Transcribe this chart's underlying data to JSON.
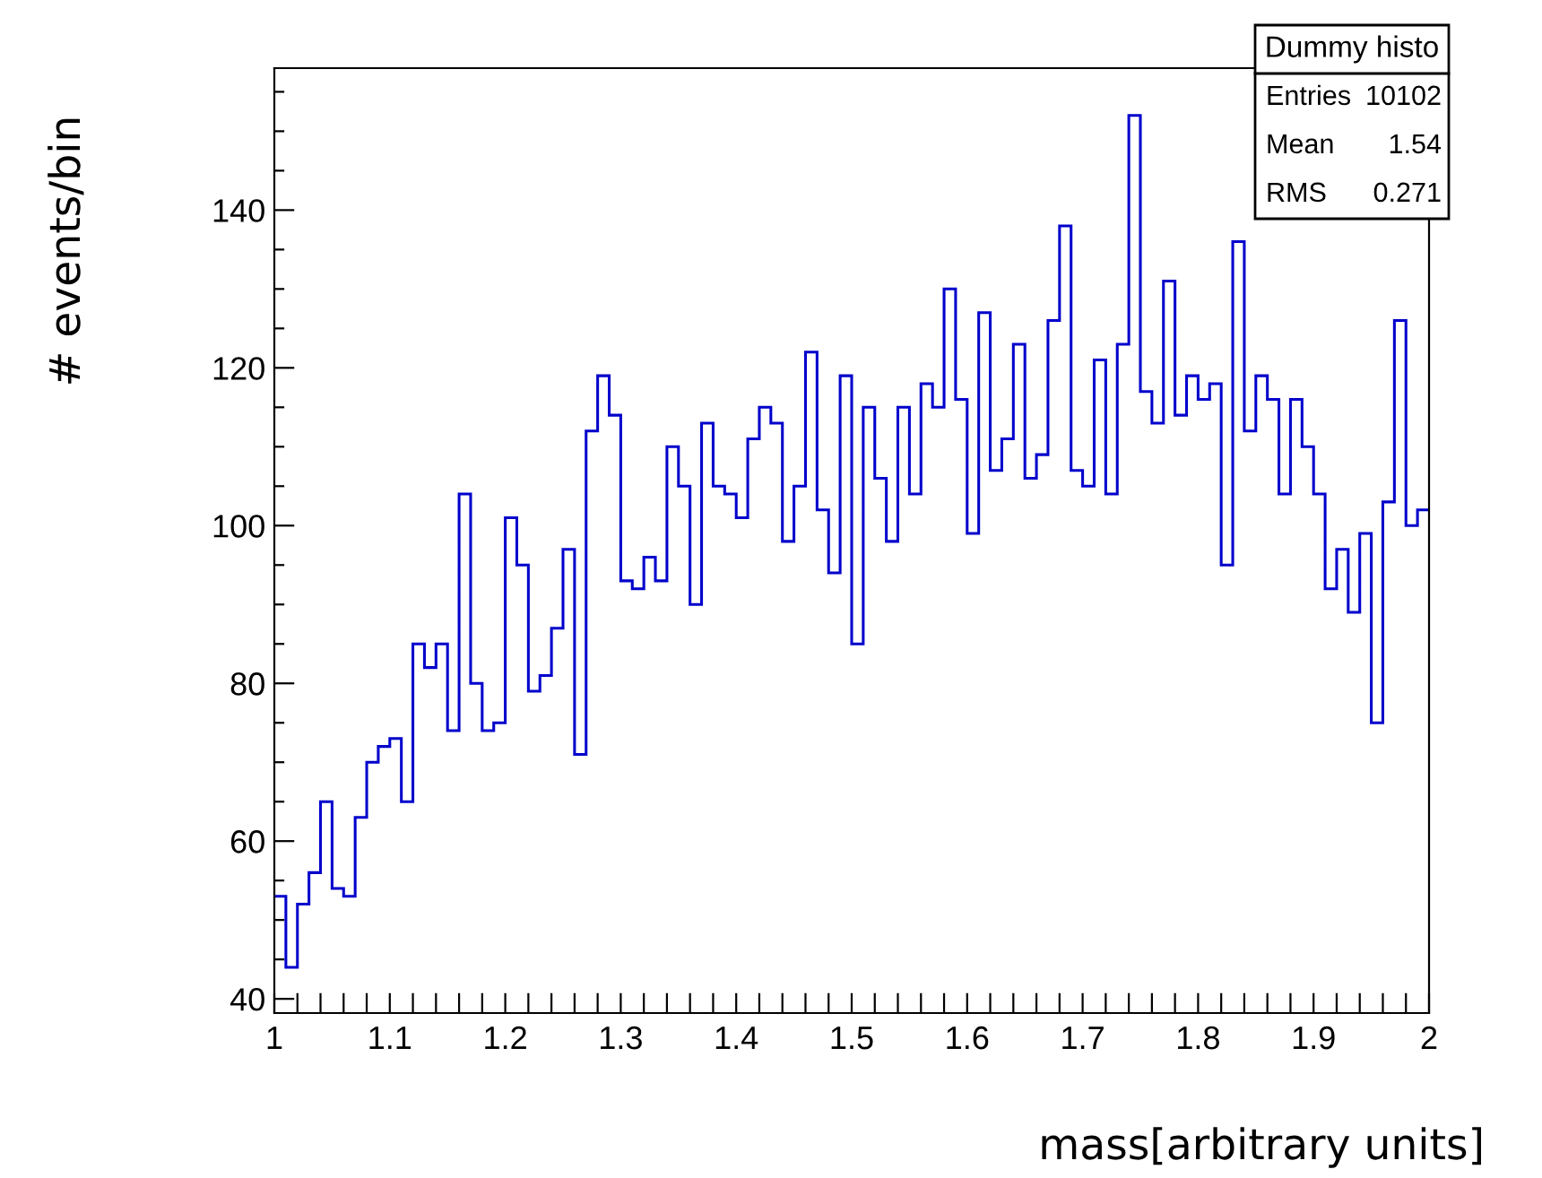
{
  "chart_data": {
    "type": "histogram",
    "xlabel": "mass[arbitrary units]",
    "ylabel": "# events/bin",
    "color": "#0000cc",
    "bins": [
      1.0,
      1.01,
      1.02,
      1.03,
      1.04,
      1.05,
      1.06,
      1.07,
      1.08,
      1.09,
      1.1,
      1.11,
      1.12,
      1.13,
      1.14,
      1.15,
      1.16,
      1.17,
      1.18,
      1.19,
      1.2,
      1.21,
      1.22,
      1.23,
      1.24,
      1.25,
      1.26,
      1.27,
      1.28,
      1.29,
      1.3,
      1.31,
      1.32,
      1.33,
      1.34,
      1.35,
      1.36,
      1.37,
      1.38,
      1.39,
      1.4,
      1.41,
      1.42,
      1.43,
      1.44,
      1.45,
      1.46,
      1.47,
      1.48,
      1.49,
      1.5,
      1.51,
      1.52,
      1.53,
      1.54,
      1.55,
      1.56,
      1.57,
      1.58,
      1.59,
      1.6,
      1.61,
      1.62,
      1.63,
      1.64,
      1.65,
      1.66,
      1.67,
      1.68,
      1.69,
      1.7,
      1.71,
      1.72,
      1.73,
      1.74,
      1.75,
      1.76,
      1.77,
      1.78,
      1.79,
      1.8,
      1.81,
      1.82,
      1.83,
      1.84,
      1.85,
      1.86,
      1.87,
      1.88,
      1.89,
      1.9,
      1.91,
      1.92,
      1.93,
      1.94,
      1.95,
      1.96,
      1.97,
      1.98,
      1.99,
      2.0
    ],
    "values": [
      53,
      44,
      52,
      56,
      65,
      54,
      53,
      63,
      70,
      72,
      73,
      65,
      85,
      82,
      85,
      74,
      104,
      80,
      74,
      75,
      101,
      95,
      79,
      81,
      87,
      97,
      71,
      112,
      119,
      114,
      93,
      92,
      96,
      93,
      110,
      105,
      90,
      113,
      105,
      104,
      101,
      111,
      115,
      113,
      98,
      105,
      122,
      102,
      94,
      119,
      85,
      115,
      106,
      98,
      115,
      104,
      118,
      115,
      130,
      116,
      99,
      127,
      107,
      111,
      123,
      106,
      109,
      126,
      138,
      107,
      105,
      121,
      104,
      123,
      152,
      117,
      113,
      131,
      114,
      119,
      116,
      118,
      95,
      136,
      112,
      119,
      116,
      104,
      116,
      110,
      104,
      92,
      97,
      89,
      99,
      75,
      103,
      126,
      100,
      102
    ],
    "xlim": [
      1,
      2
    ],
    "ylim": [
      38.2,
      158
    ],
    "xticks": [
      1,
      {
        "value": 1.02,
        "label": null
      },
      {
        "value": 1.04,
        "label": null
      },
      {
        "value": 1.06,
        "label": null
      },
      {
        "value": 1.08,
        "label": null
      },
      1.1,
      {
        "value": 1.12,
        "label": null
      },
      {
        "value": 1.14,
        "label": null
      },
      {
        "value": 1.16,
        "label": null
      },
      {
        "value": 1.18,
        "label": null
      },
      1.2,
      {
        "value": 1.22,
        "label": null
      },
      {
        "value": 1.24,
        "label": null
      },
      {
        "value": 1.26,
        "label": null
      },
      {
        "value": 1.28,
        "label": null
      },
      1.3,
      {
        "value": 1.32,
        "label": null
      },
      {
        "value": 1.34,
        "label": null
      },
      {
        "value": 1.36,
        "label": null
      },
      {
        "value": 1.38,
        "label": null
      },
      1.4,
      {
        "value": 1.42,
        "label": null
      },
      {
        "value": 1.44,
        "label": null
      },
      {
        "value": 1.46,
        "label": null
      },
      {
        "value": 1.48,
        "label": null
      },
      1.5,
      {
        "value": 1.52,
        "label": null
      },
      {
        "value": 1.54,
        "label": null
      },
      {
        "value": 1.56,
        "label": null
      },
      {
        "value": 1.58,
        "label": null
      },
      1.6,
      {
        "value": 1.62,
        "label": null
      },
      {
        "value": 1.64,
        "label": null
      },
      {
        "value": 1.66,
        "label": null
      },
      {
        "value": 1.68,
        "label": null
      },
      1.7,
      {
        "value": 1.72,
        "label": null
      },
      {
        "value": 1.74,
        "label": null
      },
      {
        "value": 1.76,
        "label": null
      },
      {
        "value": 1.78,
        "label": null
      },
      1.8,
      {
        "value": 1.82,
        "label": null
      },
      {
        "value": 1.84,
        "label": null
      },
      {
        "value": 1.86,
        "label": null
      },
      {
        "value": 1.88,
        "label": null
      },
      1.9,
      {
        "value": 1.92,
        "label": null
      },
      {
        "value": 1.94,
        "label": null
      },
      {
        "value": 1.96,
        "label": null
      },
      {
        "value": 1.98,
        "label": null
      },
      2
    ],
    "yticks": [
      40,
      {
        "value": 45,
        "label": null
      },
      {
        "value": 50,
        "label": null
      },
      {
        "value": 55,
        "label": null
      },
      60,
      {
        "value": 65,
        "label": null
      },
      {
        "value": 70,
        "label": null
      },
      {
        "value": 75,
        "label": null
      },
      80,
      {
        "value": 85,
        "label": null
      },
      {
        "value": 90,
        "label": null
      },
      {
        "value": 95,
        "label": null
      },
      100,
      {
        "value": 105,
        "label": null
      },
      {
        "value": 110,
        "label": null
      },
      {
        "value": 115,
        "label": null
      },
      120,
      {
        "value": 125,
        "label": null
      },
      {
        "value": 130,
        "label": null
      },
      {
        "value": 135,
        "label": null
      },
      140,
      {
        "value": 145,
        "label": null
      },
      {
        "value": 150,
        "label": null
      },
      {
        "value": 155,
        "label": null
      }
    ],
    "annotations": [
      "Dummy histo",
      "Entries",
      "10102",
      "Mean",
      "1.54",
      "RMS",
      "0.271"
    ]
  }
}
